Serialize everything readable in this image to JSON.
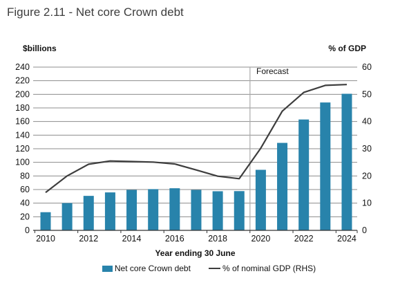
{
  "title": "Figure 2.11 - Net core Crown debt",
  "left_axis": {
    "unit_label": "$billions",
    "min": 0,
    "max": 240,
    "step": 20,
    "tick_labels": [
      "240",
      "220",
      "200",
      "180",
      "160",
      "140",
      "120",
      "100",
      "80",
      "60",
      "40",
      "20",
      "0"
    ]
  },
  "right_axis": {
    "unit_label": "% of GDP",
    "min": 0,
    "max": 60,
    "step": 10,
    "tick_labels": [
      "60",
      "50",
      "40",
      "30",
      "20",
      "10",
      "0"
    ]
  },
  "x_axis": {
    "title": "Year ending 30 June",
    "tick_labels": [
      "2010",
      "2012",
      "2014",
      "2016",
      "2018",
      "2020",
      "2022",
      "2024"
    ]
  },
  "forecast_label": "Forecast",
  "legend": {
    "bar_label": "Net core Crown debt",
    "line_label": "% of nominal GDP (RHS)"
  },
  "colors": {
    "bar": "#2883AB",
    "line": "#3D3D3D",
    "grid": "#8C8C8C",
    "axis": "#333333",
    "forecast_divider": "#AAAAAA",
    "title_text": "#3D3D3D",
    "text": "#111111"
  },
  "chart_data": {
    "type": "bar",
    "subtype": "bar-with-line-overlay",
    "title": "Figure 2.11 - Net core Crown debt",
    "xlabel": "Year ending 30 June",
    "ylabel_left": "$billions",
    "ylabel_right": "% of GDP",
    "left_ylim": [
      0,
      240
    ],
    "right_ylim": [
      0,
      60
    ],
    "grid": "horizontal",
    "legend_position": "bottom",
    "categories": [
      2010,
      2011,
      2012,
      2013,
      2014,
      2015,
      2016,
      2017,
      2018,
      2019,
      2020,
      2021,
      2022,
      2023,
      2024
    ],
    "series": [
      {
        "name": "Net core Crown debt",
        "type": "bar",
        "axis": "left",
        "values": [
          26.7,
          40.1,
          50.7,
          55.8,
          59.5,
          60.6,
          61.9,
          59.5,
          57.5,
          57.7,
          89.0,
          128.6,
          163.0,
          188.0,
          200.8
        ]
      },
      {
        "name": "% of nominal GDP (RHS)",
        "type": "line",
        "axis": "right",
        "values": [
          13.9,
          20.0,
          24.3,
          25.5,
          25.3,
          25.1,
          24.4,
          22.2,
          19.9,
          19.0,
          30.2,
          43.8,
          50.7,
          53.3,
          53.6
        ]
      }
    ],
    "annotations": [
      {
        "text": "Forecast",
        "type": "vertical-divider",
        "after_category": 2019
      }
    ]
  }
}
